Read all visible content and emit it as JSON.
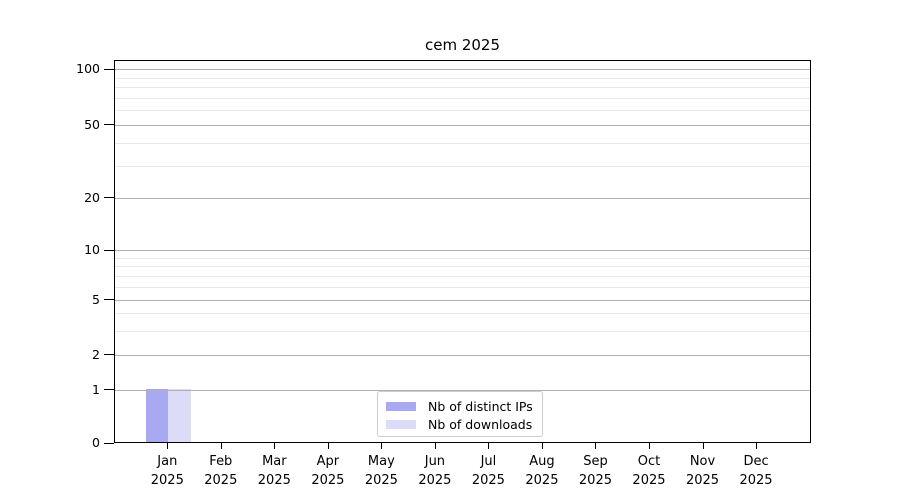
{
  "chart_data": {
    "type": "bar",
    "title": "cem 2025",
    "categories": [
      "Jan",
      "Feb",
      "Mar",
      "Apr",
      "May",
      "Jun",
      "Jul",
      "Aug",
      "Sep",
      "Oct",
      "Nov",
      "Dec"
    ],
    "category_year": "2025",
    "series": [
      {
        "name": "Nb of distinct IPs",
        "color": "#a9a9f2",
        "values": [
          1,
          0,
          0,
          0,
          0,
          0,
          0,
          0,
          0,
          0,
          0,
          0
        ]
      },
      {
        "name": "Nb of downloads",
        "color": "#dcdcf8",
        "values": [
          1,
          0,
          0,
          0,
          0,
          0,
          0,
          0,
          0,
          0,
          0,
          0
        ]
      }
    ],
    "xlabel": "",
    "ylabel": "",
    "yscale": "symlog-like",
    "ylim": [
      0,
      110
    ],
    "y_major_ticks": [
      0,
      1,
      2,
      5,
      10,
      20,
      50,
      100
    ],
    "y_minor_ticks": [
      3,
      4,
      6,
      7,
      8,
      9,
      30,
      40,
      60,
      70,
      80,
      90
    ],
    "y_scale_anchors": [
      [
        0,
        0.0
      ],
      [
        1,
        0.1384
      ],
      [
        2,
        0.2298
      ],
      [
        5,
        0.3734
      ],
      [
        10,
        0.5039
      ],
      [
        20,
        0.6397
      ],
      [
        50,
        0.8303
      ],
      [
        100,
        0.9765
      ]
    ],
    "grid": "horizontal major+minor",
    "legend_position": "lower center inside plot",
    "colors": {
      "axis": "#000000",
      "grid_major": "#b0b0b0",
      "grid_minor": "#e8e8e8",
      "legend_border": "#cccccc",
      "background": "#ffffff"
    }
  }
}
